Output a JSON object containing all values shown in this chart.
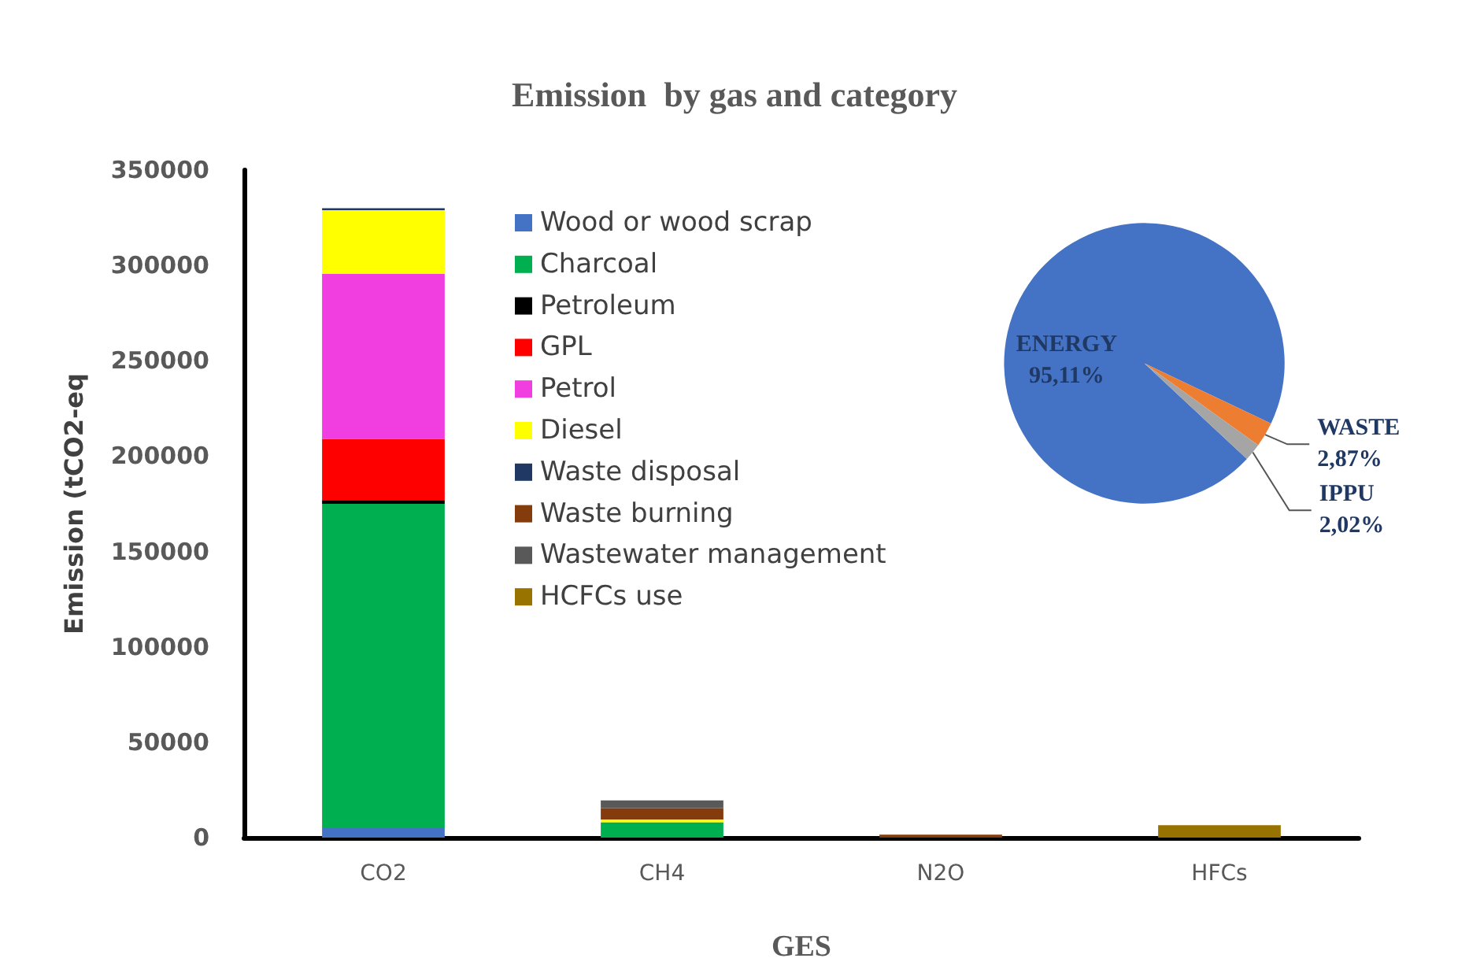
{
  "chart_data": [
    {
      "type": "bar",
      "title": "Emission  by gas and category",
      "xlabel": "GES",
      "ylabel": "Emission (tCO2-eq",
      "categories": [
        "CO2",
        "CH4",
        "N2O",
        "HFCs"
      ],
      "stacked": true,
      "ylim": [
        0,
        350000
      ],
      "yticks": [
        0,
        50000,
        100000,
        150000,
        200000,
        250000,
        300000,
        350000
      ],
      "grid": false,
      "legend": "top",
      "series": [
        {
          "name": "Wood or wood scrap",
          "color": "#4472c4",
          "values": [
            5000,
            null,
            null,
            null
          ]
        },
        {
          "name": "Charcoal",
          "color": "#00b050",
          "values": [
            170000,
            8000,
            null,
            null
          ]
        },
        {
          "name": "Petroleum",
          "color": "#000000",
          "values": [
            2000,
            null,
            null,
            null
          ]
        },
        {
          "name": "GPL",
          "color": "#ff0000",
          "values": [
            32000,
            null,
            null,
            null
          ]
        },
        {
          "name": "Petrol",
          "color": "#f03ee0",
          "values": [
            86500,
            null,
            null,
            null
          ]
        },
        {
          "name": "Diesel",
          "color": "#ffff00",
          "values": [
            33500,
            1500,
            null,
            null
          ]
        },
        {
          "name": "Waste disposal",
          "color": "#1f3864",
          "values": [
            1000,
            null,
            null,
            null
          ]
        },
        {
          "name": "Waste burning",
          "color": "#843c0c",
          "values": [
            null,
            6000,
            1500,
            null
          ]
        },
        {
          "name": "Wastewater management",
          "color": "#595959",
          "values": [
            null,
            4000,
            null,
            null
          ]
        },
        {
          "name": "HCFCs use",
          "color": "#997300",
          "values": [
            null,
            null,
            null,
            6500
          ]
        }
      ]
    },
    {
      "type": "pie",
      "categories": [
        "ENERGY",
        "WASTE",
        "IPPU"
      ],
      "values": [
        95.11,
        2.87,
        2.02
      ],
      "colors": [
        "#4472c4",
        "#ed7d31",
        "#a5a5a5"
      ],
      "value_labels": [
        "95,11%",
        "2,87%",
        "2,02%"
      ]
    }
  ]
}
